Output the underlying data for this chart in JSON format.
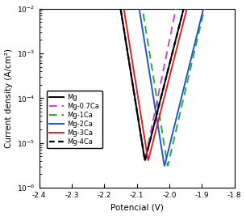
{
  "xlabel": "Potencial (V)",
  "ylabel": "Current density (A/cm²)",
  "xlim": [
    -2.4,
    -1.8
  ],
  "ylim_log": [
    -6,
    -2
  ],
  "xticks": [
    -2.4,
    -2.3,
    -2.2,
    -2.1,
    -2.0,
    -1.9,
    -1.8
  ],
  "curves": [
    {
      "name": "Mg",
      "color": "#000000",
      "linestyle": "solid",
      "linewidth": 1.4,
      "E_corr": -2.075,
      "i_corr": 4e-06,
      "ba": 35,
      "bc": 22,
      "E_start": -2.4,
      "E_end": -1.83,
      "zorder": 5
    },
    {
      "name": "Mg-0.7Ca",
      "color": "#cc44cc",
      "linestyle": "dashed",
      "linewidth": 1.4,
      "E_corr": -2.075,
      "i_corr": 4e-06,
      "ba": 28,
      "bc": 22,
      "E_start": -2.4,
      "E_end": -1.82,
      "zorder": 4
    },
    {
      "name": "Mg-1Ca",
      "color": "#22aa44",
      "linestyle": "dashed",
      "linewidth": 1.4,
      "E_corr": -2.005,
      "i_corr": 3e-06,
      "ba": 32,
      "bc": 22,
      "E_start": -2.4,
      "E_end": -1.875,
      "zorder": 3
    },
    {
      "name": "Mg-2Ca",
      "color": "#2255cc",
      "linestyle": "solid",
      "linewidth": 1.4,
      "E_corr": -2.015,
      "i_corr": 3e-06,
      "ba": 34,
      "bc": 22,
      "E_start": -2.4,
      "E_end": -1.875,
      "zorder": 4
    },
    {
      "name": "Mg-3Ca",
      "color": "#dd2222",
      "linestyle": "solid",
      "linewidth": 1.4,
      "E_corr": -2.065,
      "i_corr": 4e-06,
      "ba": 35,
      "bc": 22,
      "E_start": -2.4,
      "E_end": -1.875,
      "zorder": 5
    },
    {
      "name": "Mg-4Ca",
      "color": "#000000",
      "linestyle": "dotted",
      "linewidth": 1.6,
      "E_corr": -2.075,
      "i_corr": 4e-06,
      "ba": 35,
      "bc": 22,
      "E_start": -2.4,
      "E_end": -1.83,
      "zorder": 3
    }
  ],
  "legend_fontsize": 6.0,
  "axis_fontsize": 7.5,
  "tick_fontsize": 6.5,
  "figsize": [
    3.05,
    2.67
  ],
  "dpi": 100
}
